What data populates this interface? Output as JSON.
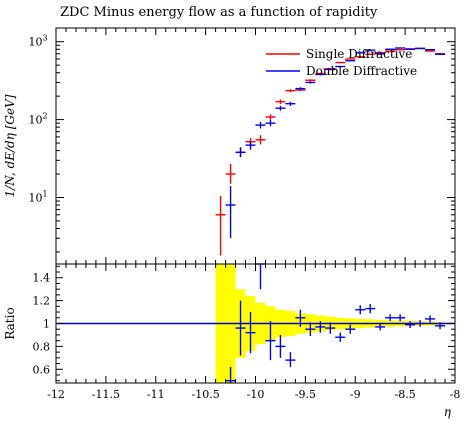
{
  "chart_data": {
    "type": "scatter",
    "title": "ZDC Minus energy flow as a function of rapidity",
    "xlabel": "η",
    "ylabel": "1/N, dE/dη [GeV]",
    "ratio_ylabel": "Ratio",
    "xlim": [
      -12,
      -8
    ],
    "ylim_top": [
      1.4,
      1500
    ],
    "ylog": true,
    "ylim_ratio": [
      0.48,
      1.52
    ],
    "x_ticks": [
      "-12",
      "-11.5",
      "-11",
      "-10.5",
      "-10",
      "-9.5",
      "-9",
      "-8.5",
      "-8"
    ],
    "y_ticks_top": [
      "10^1",
      "10^2",
      "10^3"
    ],
    "y_ticks_ratio": [
      "0.6",
      "0.8",
      "1",
      "1.2",
      "1.4"
    ],
    "legend_position": "top-right",
    "series": [
      {
        "name": "Single Diffractive",
        "color": "#ff0000",
        "points": [
          {
            "x": -10.35,
            "y": 6.0,
            "ylo": 1.8,
            "yhi": 10.5
          },
          {
            "x": -10.25,
            "y": 20,
            "ylo": 15,
            "yhi": 27
          },
          {
            "x": -10.15,
            "y": 38,
            "ylo": 33,
            "yhi": 44
          },
          {
            "x": -10.05,
            "y": 52,
            "ylo": 46,
            "yhi": 58
          },
          {
            "x": -9.95,
            "y": 55,
            "ylo": 48,
            "yhi": 63
          },
          {
            "x": -9.85,
            "y": 108,
            "ylo": 99,
            "yhi": 117
          },
          {
            "x": -9.75,
            "y": 170,
            "ylo": 158,
            "yhi": 182
          },
          {
            "x": -9.65,
            "y": 235,
            "ylo": 225,
            "yhi": 245
          },
          {
            "x": -9.55,
            "y": 240,
            "ylo": 232,
            "yhi": 248
          },
          {
            "x": -9.45,
            "y": 320,
            "ylo": 310,
            "yhi": 330
          },
          {
            "x": -9.35,
            "y": 390,
            "ylo": 380,
            "yhi": 400
          },
          {
            "x": -9.25,
            "y": 450,
            "ylo": 440,
            "yhi": 460
          },
          {
            "x": -9.15,
            "y": 540,
            "ylo": 530,
            "yhi": 550
          },
          {
            "x": -9.05,
            "y": 600,
            "ylo": 590,
            "yhi": 610
          },
          {
            "x": -8.95,
            "y": 640,
            "ylo": 630,
            "yhi": 650
          },
          {
            "x": -8.85,
            "y": 690,
            "ylo": 680,
            "yhi": 700
          },
          {
            "x": -8.75,
            "y": 720,
            "ylo": 710,
            "yhi": 730
          },
          {
            "x": -8.65,
            "y": 760,
            "ylo": 750,
            "yhi": 770
          },
          {
            "x": -8.55,
            "y": 790,
            "ylo": 780,
            "yhi": 800
          },
          {
            "x": -8.45,
            "y": 810,
            "ylo": 800,
            "yhi": 820
          },
          {
            "x": -8.35,
            "y": 820,
            "ylo": 810,
            "yhi": 830
          },
          {
            "x": -8.25,
            "y": 760,
            "ylo": 750,
            "yhi": 770
          },
          {
            "x": -8.15,
            "y": 700,
            "ylo": 690,
            "yhi": 710
          }
        ]
      },
      {
        "name": "Double Diffractive",
        "color": "#0000ff",
        "points": [
          {
            "x": -10.25,
            "y": 8.0,
            "ylo": 3.0,
            "yhi": 14
          },
          {
            "x": -10.15,
            "y": 38,
            "ylo": 33,
            "yhi": 44
          },
          {
            "x": -10.05,
            "y": 47,
            "ylo": 41,
            "yhi": 53
          },
          {
            "x": -9.95,
            "y": 85,
            "ylo": 77,
            "yhi": 93
          },
          {
            "x": -9.85,
            "y": 90,
            "ylo": 82,
            "yhi": 99
          },
          {
            "x": -9.75,
            "y": 140,
            "ylo": 130,
            "yhi": 150
          },
          {
            "x": -9.65,
            "y": 160,
            "ylo": 150,
            "yhi": 170
          },
          {
            "x": -9.55,
            "y": 250,
            "ylo": 240,
            "yhi": 260
          },
          {
            "x": -9.45,
            "y": 300,
            "ylo": 290,
            "yhi": 310
          },
          {
            "x": -9.35,
            "y": 380,
            "ylo": 370,
            "yhi": 390
          },
          {
            "x": -9.25,
            "y": 440,
            "ylo": 430,
            "yhi": 450
          },
          {
            "x": -9.15,
            "y": 480,
            "ylo": 470,
            "yhi": 490
          },
          {
            "x": -9.05,
            "y": 570,
            "ylo": 560,
            "yhi": 580
          },
          {
            "x": -8.95,
            "y": 720,
            "ylo": 710,
            "yhi": 730
          },
          {
            "x": -8.85,
            "y": 780,
            "ylo": 770,
            "yhi": 790
          },
          {
            "x": -8.75,
            "y": 700,
            "ylo": 690,
            "yhi": 710
          },
          {
            "x": -8.65,
            "y": 800,
            "ylo": 790,
            "yhi": 810
          },
          {
            "x": -8.55,
            "y": 830,
            "ylo": 820,
            "yhi": 840
          },
          {
            "x": -8.45,
            "y": 800,
            "ylo": 790,
            "yhi": 810
          },
          {
            "x": -8.35,
            "y": 820,
            "ylo": 810,
            "yhi": 830
          },
          {
            "x": -8.25,
            "y": 790,
            "ylo": 780,
            "yhi": 800
          },
          {
            "x": -8.15,
            "y": 690,
            "ylo": 680,
            "yhi": 700
          }
        ]
      }
    ],
    "ratio": {
      "reference_line": 1.0,
      "band_color": "#ffff00",
      "band": [
        {
          "x0": -10.4,
          "x1": -10.3,
          "lo": 0.48,
          "hi": 1.52
        },
        {
          "x0": -10.3,
          "x1": -10.2,
          "lo": 0.48,
          "hi": 1.52
        },
        {
          "x0": -10.2,
          "x1": -10.1,
          "lo": 0.7,
          "hi": 1.3
        },
        {
          "x0": -10.1,
          "x1": -10.0,
          "lo": 0.76,
          "hi": 1.24
        },
        {
          "x0": -10.0,
          "x1": -9.9,
          "lo": 0.82,
          "hi": 1.18
        },
        {
          "x0": -9.9,
          "x1": -9.8,
          "lo": 0.85,
          "hi": 1.15
        },
        {
          "x0": -9.8,
          "x1": -9.7,
          "lo": 0.88,
          "hi": 1.12
        },
        {
          "x0": -9.7,
          "x1": -9.6,
          "lo": 0.89,
          "hi": 1.11
        },
        {
          "x0": -9.6,
          "x1": -9.5,
          "lo": 0.91,
          "hi": 1.09
        },
        {
          "x0": -9.5,
          "x1": -9.4,
          "lo": 0.92,
          "hi": 1.08
        },
        {
          "x0": -9.4,
          "x1": -9.3,
          "lo": 0.93,
          "hi": 1.07
        },
        {
          "x0": -9.3,
          "x1": -9.2,
          "lo": 0.94,
          "hi": 1.06
        },
        {
          "x0": -9.2,
          "x1": -9.1,
          "lo": 0.95,
          "hi": 1.05
        },
        {
          "x0": -9.1,
          "x1": -9.0,
          "lo": 0.955,
          "hi": 1.045
        },
        {
          "x0": -9.0,
          "x1": -8.9,
          "lo": 0.96,
          "hi": 1.04
        },
        {
          "x0": -8.9,
          "x1": -8.8,
          "lo": 0.965,
          "hi": 1.035
        },
        {
          "x0": -8.8,
          "x1": -8.7,
          "lo": 0.97,
          "hi": 1.03
        },
        {
          "x0": -8.7,
          "x1": -8.6,
          "lo": 0.972,
          "hi": 1.028
        },
        {
          "x0": -8.6,
          "x1": -8.5,
          "lo": 0.975,
          "hi": 1.025
        },
        {
          "x0": -8.5,
          "x1": -8.4,
          "lo": 0.978,
          "hi": 1.022
        },
        {
          "x0": -8.4,
          "x1": -8.3,
          "lo": 0.98,
          "hi": 1.02
        },
        {
          "x0": -8.3,
          "x1": -8.2,
          "lo": 0.982,
          "hi": 1.018
        },
        {
          "x0": -8.2,
          "x1": -8.1,
          "lo": 0.985,
          "hi": 1.015
        }
      ],
      "points": [
        {
          "x": -10.25,
          "y": 0.5,
          "ylo": 0.48,
          "yhi": 0.62
        },
        {
          "x": -10.15,
          "y": 0.96,
          "ylo": 0.72,
          "yhi": 1.2
        },
        {
          "x": -10.05,
          "y": 0.92,
          "ylo": 0.74,
          "yhi": 1.1
        },
        {
          "x": -9.95,
          "y": 1.52,
          "ylo": 1.3,
          "yhi": 1.52
        },
        {
          "x": -9.85,
          "y": 0.85,
          "ylo": 0.68,
          "yhi": 1.02
        },
        {
          "x": -9.75,
          "y": 0.8,
          "ylo": 0.7,
          "yhi": 0.9
        },
        {
          "x": -9.65,
          "y": 0.68,
          "ylo": 0.62,
          "yhi": 0.75
        },
        {
          "x": -9.55,
          "y": 1.05,
          "ylo": 0.97,
          "yhi": 1.12
        },
        {
          "x": -9.45,
          "y": 0.95,
          "ylo": 0.89,
          "yhi": 1.01
        },
        {
          "x": -9.35,
          "y": 0.97,
          "ylo": 0.92,
          "yhi": 1.02
        },
        {
          "x": -9.25,
          "y": 0.96,
          "ylo": 0.91,
          "yhi": 1.01
        },
        {
          "x": -9.15,
          "y": 0.88,
          "ylo": 0.84,
          "yhi": 0.92
        },
        {
          "x": -9.05,
          "y": 0.95,
          "ylo": 0.91,
          "yhi": 0.99
        },
        {
          "x": -8.95,
          "y": 1.12,
          "ylo": 1.08,
          "yhi": 1.16
        },
        {
          "x": -8.85,
          "y": 1.13,
          "ylo": 1.09,
          "yhi": 1.17
        },
        {
          "x": -8.75,
          "y": 0.97,
          "ylo": 0.94,
          "yhi": 1.0
        },
        {
          "x": -8.65,
          "y": 1.05,
          "ylo": 1.02,
          "yhi": 1.08
        },
        {
          "x": -8.55,
          "y": 1.05,
          "ylo": 1.02,
          "yhi": 1.08
        },
        {
          "x": -8.45,
          "y": 0.99,
          "ylo": 0.96,
          "yhi": 1.02
        },
        {
          "x": -8.35,
          "y": 1.0,
          "ylo": 0.97,
          "yhi": 1.03
        },
        {
          "x": -8.25,
          "y": 1.04,
          "ylo": 1.01,
          "yhi": 1.07
        },
        {
          "x": -8.15,
          "y": 0.98,
          "ylo": 0.95,
          "yhi": 1.01
        }
      ]
    }
  }
}
